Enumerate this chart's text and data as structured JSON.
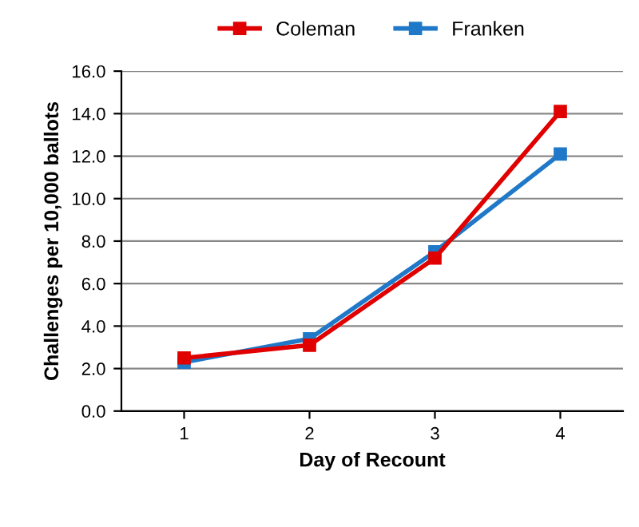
{
  "chart_data": {
    "type": "line",
    "xlabel": "Day of Recount",
    "ylabel": "Challenges per 10,000 ballots",
    "categories": [
      "1",
      "2",
      "3",
      "4"
    ],
    "series": [
      {
        "name": "Coleman",
        "color": "#e00000",
        "values": [
          2.5,
          3.1,
          7.2,
          14.1
        ]
      },
      {
        "name": "Franken",
        "color": "#1f78c8",
        "values": [
          2.3,
          3.4,
          7.5,
          12.1
        ]
      }
    ],
    "ylim": [
      0,
      16
    ],
    "yticks": [
      {
        "value": 0,
        "label": "0.0"
      },
      {
        "value": 2,
        "label": "2.0"
      },
      {
        "value": 4,
        "label": "4.0"
      },
      {
        "value": 6,
        "label": "6.0"
      },
      {
        "value": 8,
        "label": "8.0"
      },
      {
        "value": 10,
        "label": "10.0"
      },
      {
        "value": 12,
        "label": "12.0"
      },
      {
        "value": 14,
        "label": "14.0"
      },
      {
        "value": 16,
        "label": "16.0"
      }
    ],
    "grid": "y",
    "legend": "top",
    "marker": "square",
    "line_style": "solid"
  }
}
